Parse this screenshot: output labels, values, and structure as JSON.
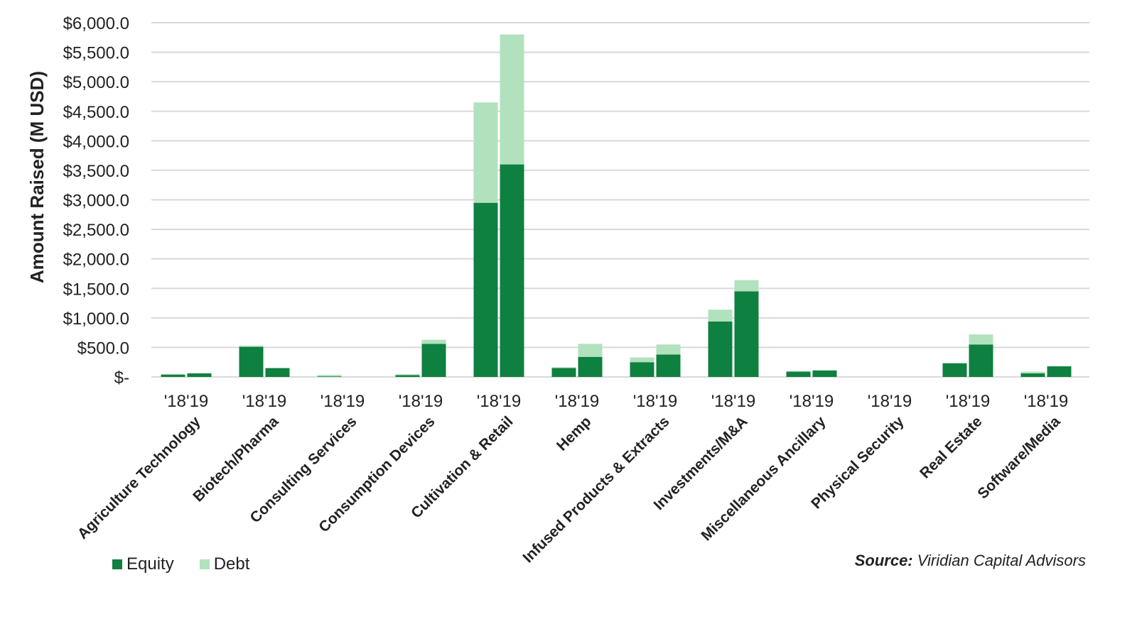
{
  "chart_data": {
    "type": "bar",
    "stacked": true,
    "title": "",
    "ylabel": "Amount Raised (M USD)",
    "xlabel": "",
    "ylim": [
      0,
      6000
    ],
    "yticks": [
      0,
      500,
      1000,
      1500,
      2000,
      2500,
      3000,
      3500,
      4000,
      4500,
      5000,
      5500,
      6000
    ],
    "ytick_labels": [
      "$-",
      "$500.0",
      "$1,000.0",
      "$1,500.0",
      "$2,000.0",
      "$2,500.0",
      "$3,000.0",
      "$3,500.0",
      "$4,000.0",
      "$4,500.0",
      "$5,000.0",
      "$5,500.0",
      "$6,000.0"
    ],
    "grid": true,
    "legend_position": "bottom-left",
    "sub_categories": [
      "'18",
      "'19"
    ],
    "categories": [
      "Agriculture Technology",
      "Biotech/Pharma",
      "Consulting Services",
      "Consumption Devices",
      "Cultivation & Retail",
      "Hemp",
      "Infused Products & Extracts",
      "Investments/M&A",
      "Miscellaneous Ancillary",
      "Physical Security",
      "Real Estate",
      "Software/Media"
    ],
    "series": [
      {
        "name": "Equity",
        "color": "#0e8040",
        "values_18": [
          40,
          510,
          10,
          30,
          2950,
          150,
          250,
          940,
          90,
          0,
          230,
          60
        ],
        "values_19": [
          60,
          150,
          0,
          560,
          3600,
          340,
          380,
          1450,
          110,
          0,
          550,
          180
        ]
      },
      {
        "name": "Debt",
        "color": "#b2e2bd",
        "values_18": [
          10,
          20,
          25,
          15,
          1700,
          15,
          80,
          200,
          5,
          0,
          10,
          30
        ],
        "values_19": [
          5,
          0,
          0,
          70,
          2200,
          220,
          170,
          190,
          5,
          0,
          170,
          0
        ]
      }
    ]
  },
  "legend": {
    "equity_label": "Equity",
    "debt_label": "Debt"
  },
  "source": {
    "label": "Source:",
    "text": "Viridian Capital Advisors"
  }
}
